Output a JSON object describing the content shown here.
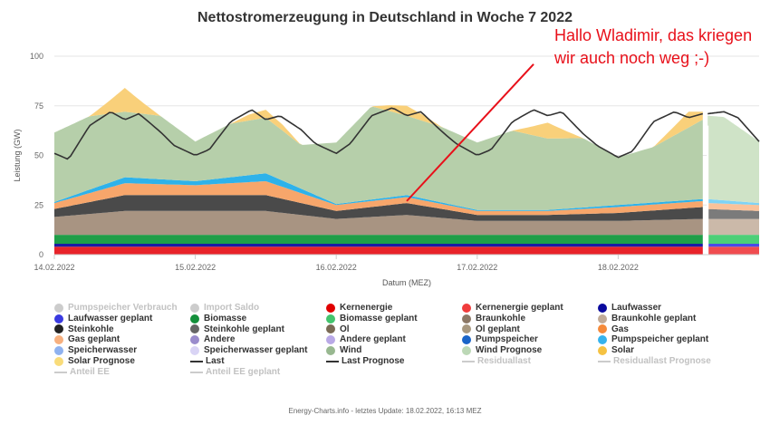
{
  "chart_data": {
    "type": "area",
    "title": "Nettostromerzeugung in Deutschland in Woche 7 2022",
    "xlabel": "Datum (MEZ)",
    "ylabel": "Leistung (GW)",
    "ylim": [
      0,
      100
    ],
    "yticks": [
      0,
      25,
      50,
      75,
      100
    ],
    "x_tick_labels": [
      "14.02.2022",
      "15.02.2022",
      "16.02.2022",
      "17.02.2022",
      "18.02.2022"
    ],
    "x_range_days": [
      0,
      5
    ],
    "forecast_start_day": 4.635,
    "grid": true,
    "legend_placement": "bottom",
    "stack": [
      {
        "name": "Kernenergie",
        "color": "#e8232a",
        "x": [
          0,
          1,
          2,
          3,
          4,
          4.6
        ],
        "y": [
          4,
          4,
          4,
          4,
          4,
          4
        ]
      },
      {
        "name": "Laufwasser",
        "color": "#1a1aa6",
        "x": [
          0,
          1,
          2,
          3,
          4,
          4.6
        ],
        "y": [
          1.5,
          1.5,
          1.5,
          1.5,
          1.5,
          1.5
        ]
      },
      {
        "name": "Biomasse",
        "color": "#1f9e48",
        "x": [
          0,
          1,
          2,
          3,
          4,
          4.6
        ],
        "y": [
          4.5,
          4.5,
          4.5,
          4.5,
          4.5,
          4.5
        ]
      },
      {
        "name": "Braunkohle",
        "color": "#a89482",
        "x": [
          0,
          0.5,
          1,
          1.5,
          2,
          2.5,
          3,
          3.5,
          4,
          4.6
        ],
        "y": [
          9,
          12,
          12,
          12,
          8,
          10,
          7,
          7,
          7,
          8
        ]
      },
      {
        "name": "Steinkohle",
        "color": "#4a4a4a",
        "x": [
          0,
          0.5,
          1,
          1.5,
          2,
          2.5,
          3,
          3.5,
          4,
          4.6
        ],
        "y": [
          4,
          8,
          8,
          8,
          4,
          6,
          3,
          3,
          4,
          6
        ]
      },
      {
        "name": "Gas",
        "color": "#f7a66b",
        "x": [
          0,
          0.5,
          1,
          1.5,
          2,
          2.5,
          3,
          3.5,
          4,
          4.6
        ],
        "y": [
          3,
          6,
          5,
          7,
          3,
          3,
          2,
          2,
          3,
          3
        ]
      },
      {
        "name": "Pumpspeicher",
        "color": "#2eb2ea",
        "x": [
          0,
          0.5,
          1,
          1.5,
          2,
          2.5,
          3,
          3.5,
          4,
          4.6
        ],
        "y": [
          0.5,
          3,
          2,
          4,
          0.5,
          1,
          0.5,
          0.5,
          1,
          1
        ]
      },
      {
        "name": "Wind",
        "color": "#b6cfaa",
        "x": [
          0,
          0.25,
          0.5,
          0.75,
          1,
          1.25,
          1.5,
          1.75,
          2,
          2.25,
          2.5,
          2.75,
          3,
          3.25,
          3.5,
          3.75,
          4,
          4.25,
          4.6
        ],
        "y": [
          35,
          37,
          33,
          32,
          20,
          27,
          28,
          22,
          31,
          47,
          40,
          38,
          34,
          40,
          36,
          35,
          24,
          28,
          40
        ]
      },
      {
        "name": "Solar",
        "color": "#f9d07a",
        "x": [
          0,
          0.25,
          0.38,
          0.5,
          0.62,
          0.75,
          1,
          1.25,
          1.38,
          1.5,
          1.62,
          1.75,
          2,
          2.25,
          2.38,
          2.5,
          2.62,
          2.75,
          3,
          3.25,
          3.38,
          3.5,
          3.62,
          3.75,
          4,
          4.25,
          4.38,
          4.5,
          4.6
        ],
        "y": [
          0,
          0,
          6,
          12,
          6,
          0,
          0,
          0,
          3,
          4,
          3,
          0,
          0,
          0,
          3,
          5,
          3,
          0,
          0,
          0,
          4,
          8,
          4,
          0,
          0,
          0,
          4,
          8,
          4
        ]
      }
    ],
    "forecast_stack": [
      {
        "name": "Kernenergie geplant",
        "color": "#f04c50",
        "x": [
          4.635,
          5
        ],
        "y": [
          4,
          4
        ]
      },
      {
        "name": "Laufwasser geplant",
        "color": "#4a4ae8",
        "x": [
          4.635,
          5
        ],
        "y": [
          1.5,
          1.5
        ]
      },
      {
        "name": "Biomasse geplant",
        "color": "#4dcf77",
        "x": [
          4.635,
          5
        ],
        "y": [
          4.5,
          4.5
        ]
      },
      {
        "name": "Braunkohle geplant",
        "color": "#cbb9a9",
        "x": [
          4.635,
          5
        ],
        "y": [
          8,
          8
        ]
      },
      {
        "name": "Steinkohle geplant",
        "color": "#7b7b7b",
        "x": [
          4.635,
          5
        ],
        "y": [
          5,
          4
        ]
      },
      {
        "name": "Gas geplant",
        "color": "#fac29a",
        "x": [
          4.635,
          5
        ],
        "y": [
          3,
          3
        ]
      },
      {
        "name": "Pumpspeicher geplant",
        "color": "#7fd3f5",
        "x": [
          4.635,
          5
        ],
        "y": [
          2,
          1
        ]
      },
      {
        "name": "Wind Prognose",
        "color": "#cfe3c7",
        "x": [
          4.635,
          4.75,
          5
        ],
        "y": [
          42,
          42,
          31
        ]
      },
      {
        "name": "Solar Prognose",
        "color": "#fbe19e",
        "x": [
          4.635,
          4.75,
          5
        ],
        "y": [
          0,
          0,
          0
        ]
      }
    ],
    "lines": [
      {
        "name": "Last",
        "color": "#333333",
        "x": [
          0,
          0.1,
          0.25,
          0.4,
          0.5,
          0.6,
          0.75,
          0.85,
          1,
          1.1,
          1.25,
          1.4,
          1.5,
          1.6,
          1.75,
          1.85,
          2,
          2.1,
          2.25,
          2.4,
          2.5,
          2.6,
          2.75,
          2.85,
          3,
          3.1,
          3.25,
          3.4,
          3.5,
          3.6,
          3.75,
          3.85,
          4,
          4.1,
          4.25,
          4.4,
          4.5,
          4.6
        ],
        "y": [
          51,
          48,
          65,
          72,
          68,
          71,
          62,
          55,
          50,
          53,
          67,
          73,
          68,
          70,
          63,
          56,
          51,
          56,
          70,
          74,
          70,
          72,
          62,
          56,
          50,
          53,
          67,
          73,
          70,
          72,
          61,
          55,
          49,
          52,
          67,
          72,
          69,
          71
        ]
      },
      {
        "name": "Last Prognose",
        "color": "#333333",
        "x": [
          4.635,
          4.75,
          4.85,
          5
        ],
        "y": [
          71,
          72,
          69,
          57
        ]
      }
    ],
    "legend": [
      {
        "label": "Pumpspeicher Verbrauch",
        "color": "#cccccc",
        "shape": "dot",
        "faded": true
      },
      {
        "label": "Import Saldo",
        "color": "#cccccc",
        "shape": "dot",
        "faded": true
      },
      {
        "label": "Kernenergie",
        "color": "#e00000",
        "shape": "dot",
        "faded": false
      },
      {
        "label": "Kernenergie geplant",
        "color": "#f03c3c",
        "shape": "dot",
        "faded": false
      },
      {
        "label": "Laufwasser",
        "color": "#0a0a9e",
        "shape": "dot",
        "faded": false
      },
      {
        "label": "Laufwasser geplant",
        "color": "#3a3ae0",
        "shape": "dot",
        "faded": false
      },
      {
        "label": "Biomasse",
        "color": "#138f3a",
        "shape": "dot",
        "faded": false
      },
      {
        "label": "Biomasse geplant",
        "color": "#43c46d",
        "shape": "dot",
        "faded": false
      },
      {
        "label": "Braunkohle",
        "color": "#8c7866",
        "shape": "dot",
        "faded": false
      },
      {
        "label": "Braunkohle geplant",
        "color": "#c1ab98",
        "shape": "dot",
        "faded": false
      },
      {
        "label": "Steinkohle",
        "color": "#222222",
        "shape": "dot",
        "faded": false
      },
      {
        "label": "Steinkohle geplant",
        "color": "#666666",
        "shape": "dot",
        "faded": false
      },
      {
        "label": "Öl",
        "color": "#7a6a55",
        "shape": "dot",
        "faded": false
      },
      {
        "label": "Öl geplant",
        "color": "#a8987f",
        "shape": "dot",
        "faded": false
      },
      {
        "label": "Gas",
        "color": "#f58a3a",
        "shape": "dot",
        "faded": false
      },
      {
        "label": "Gas geplant",
        "color": "#f7b07f",
        "shape": "dot",
        "faded": false
      },
      {
        "label": "Andere",
        "color": "#9a8ccc",
        "shape": "dot",
        "faded": false
      },
      {
        "label": "Andere geplant",
        "color": "#b9a9e6",
        "shape": "dot",
        "faded": false
      },
      {
        "label": "Pumpspeicher",
        "color": "#1a64c8",
        "shape": "dot",
        "faded": false
      },
      {
        "label": "Pumpspeicher geplant",
        "color": "#35b3ee",
        "shape": "dot",
        "faded": false
      },
      {
        "label": "Speicherwasser",
        "color": "#8fb2f0",
        "shape": "dot",
        "faded": false
      },
      {
        "label": "Speicherwasser geplant",
        "color": "#d9d4f5",
        "shape": "dot",
        "faded": false
      },
      {
        "label": "Wind",
        "color": "#98b890",
        "shape": "dot",
        "faded": false
      },
      {
        "label": "Wind Prognose",
        "color": "#bcd8b6",
        "shape": "dot",
        "faded": false
      },
      {
        "label": "Solar",
        "color": "#f5c242",
        "shape": "dot",
        "faded": false
      },
      {
        "label": "Solar Prognose",
        "color": "#f9dc7a",
        "shape": "dot",
        "faded": false
      },
      {
        "label": "Last",
        "color": "#333333",
        "shape": "line",
        "faded": false
      },
      {
        "label": "Last Prognose",
        "color": "#333333",
        "shape": "line",
        "faded": false
      },
      {
        "label": "Residuallast",
        "color": "#cccccc",
        "shape": "line",
        "faded": true
      },
      {
        "label": "Residuallast Prognose",
        "color": "#cccccc",
        "shape": "line",
        "faded": true
      },
      {
        "label": "Anteil EE",
        "color": "#cccccc",
        "shape": "line",
        "faded": true
      },
      {
        "label": "Anteil EE geplant",
        "color": "#cccccc",
        "shape": "line",
        "faded": true
      }
    ],
    "annotation": {
      "text_line1": "Hallo Wladimir, das kriegen",
      "text_line2": "wir auch noch weg ;-)",
      "color": "#e8101a",
      "arrow_from": {
        "x_day": 2.5,
        "y_gw": 27
      },
      "arrow_to": {
        "x_day": 3.4,
        "y_gw": 96
      }
    }
  },
  "footer": "Energy-Charts.info - letztes Update: 18.02.2022, 16:13 MEZ"
}
